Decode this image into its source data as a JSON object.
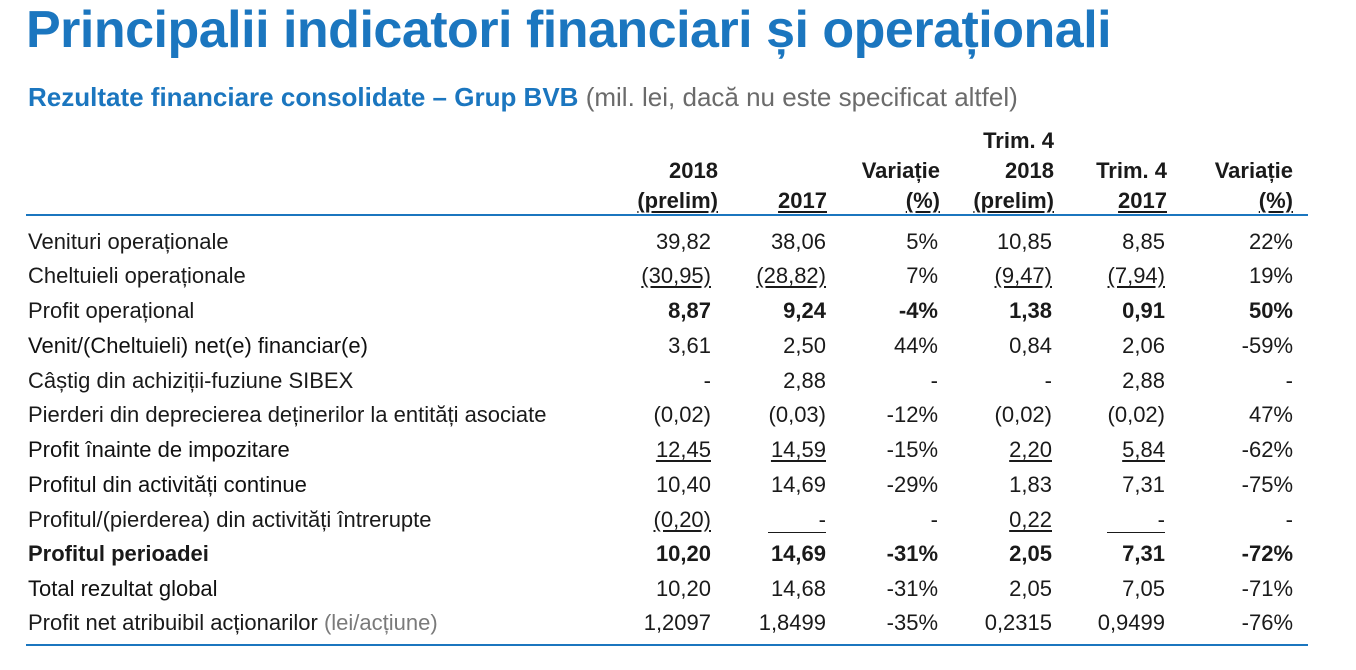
{
  "title": "Principalii indicatori financiari și operaționali",
  "subtitle": {
    "main": "Rezultate financiare consolidate – Grup BVB",
    "note": "(mil. lei, dacă nu este specificat altfel)"
  },
  "headers": [
    {
      "lines": [
        "2018",
        "(prelim)"
      ]
    },
    {
      "lines": [
        "2017"
      ]
    },
    {
      "lines": [
        "Variație",
        "(%)"
      ]
    },
    {
      "lines": [
        "Trim. 4",
        "2018",
        "(prelim)"
      ]
    },
    {
      "lines": [
        "Trim. 4",
        "2017"
      ]
    },
    {
      "lines": [
        "Variație",
        "(%)"
      ]
    }
  ],
  "rows": [
    {
      "label": "Venituri operaționale",
      "values": [
        "39,82",
        "38,06",
        "5%",
        "10,85",
        "8,85",
        "22%"
      ]
    },
    {
      "label": "Cheltuieli operaționale",
      "values": [
        "(30,95)",
        "(28,82)",
        "7%",
        "(9,47)",
        "(7,94)",
        "19%"
      ]
    },
    {
      "label": "Profit operațional",
      "values": [
        "8,87",
        "9,24",
        "-4%",
        "1,38",
        "0,91",
        "50%"
      ]
    },
    {
      "label": "Venit/(Cheltuieli) net(e) financiar(e)",
      "values": [
        "3,61",
        "2,50",
        "44%",
        "0,84",
        "2,06",
        "-59%"
      ]
    },
    {
      "label": "Câștig din achiziții-fuziune SIBEX",
      "values": [
        "-",
        "2,88",
        "-",
        "-",
        "2,88",
        "-"
      ]
    },
    {
      "label": "Pierderi din deprecierea deținerilor la entități asociate",
      "values": [
        "(0,02)",
        "(0,03)",
        "-12%",
        "(0,02)",
        "(0,02)",
        "47%"
      ]
    },
    {
      "label": "Profit înainte de impozitare",
      "values": [
        "12,45",
        "14,59",
        "-15%",
        "2,20",
        "5,84",
        "-62%"
      ]
    },
    {
      "label": "Profitul din activități continue",
      "values": [
        "10,40",
        "14,69",
        "-29%",
        "1,83",
        "7,31",
        "-75%"
      ]
    },
    {
      "label": "Profitul/(pierderea) din activități întrerupte",
      "values": [
        "(0,20)",
        "-",
        "-",
        "0,22",
        "-",
        "-"
      ]
    },
    {
      "label": "Profitul perioadei",
      "values": [
        "10,20",
        "14,69",
        "-31%",
        "2,05",
        "7,31",
        "-72%"
      ]
    },
    {
      "label": "Total rezultat global",
      "values": [
        "10,20",
        "14,68",
        "-31%",
        "2,05",
        "7,05",
        "-71%"
      ]
    },
    {
      "label": "Profit net atribuibil acționarilor",
      "label_sub": "(lei/acțiune)",
      "values": [
        "1,2097",
        "1,8499",
        "-35%",
        "0,2315",
        "0,9499",
        "-76%"
      ]
    }
  ]
}
